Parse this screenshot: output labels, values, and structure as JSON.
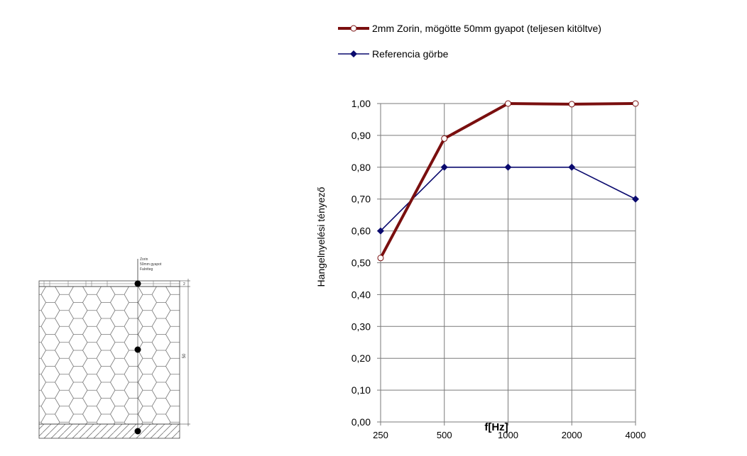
{
  "chart_data": {
    "type": "line",
    "categories": [
      "250",
      "500",
      "1000",
      "2000",
      "4000"
    ],
    "series": [
      {
        "name": "2mm Zorin, mögötte 50mm gyapot (teljesen kitöltve)",
        "values": [
          0.515,
          0.89,
          1.0,
          0.998,
          1.0
        ],
        "color": "#7a0f0f",
        "marker": "circle"
      },
      {
        "name": "Referencia görbe",
        "values": [
          0.6,
          0.8,
          0.8,
          0.8,
          0.7
        ],
        "color": "#0a0a6e",
        "marker": "diamond"
      }
    ],
    "ylabel": "Hangelnyelési tényező",
    "xlabel": "f[Hz]",
    "ylim": [
      0,
      1.0
    ],
    "yticks": [
      "0,00",
      "0,10",
      "0,20",
      "0,30",
      "0,40",
      "0,50",
      "0,60",
      "0,70",
      "0,80",
      "0,90",
      "1,00"
    ],
    "grid": true,
    "legend_position": "top"
  },
  "diagram": {
    "labels": [
      "Zorin",
      "50mm gyapot",
      "Falréteg"
    ],
    "dim_top": "2",
    "dim_main": "50"
  }
}
